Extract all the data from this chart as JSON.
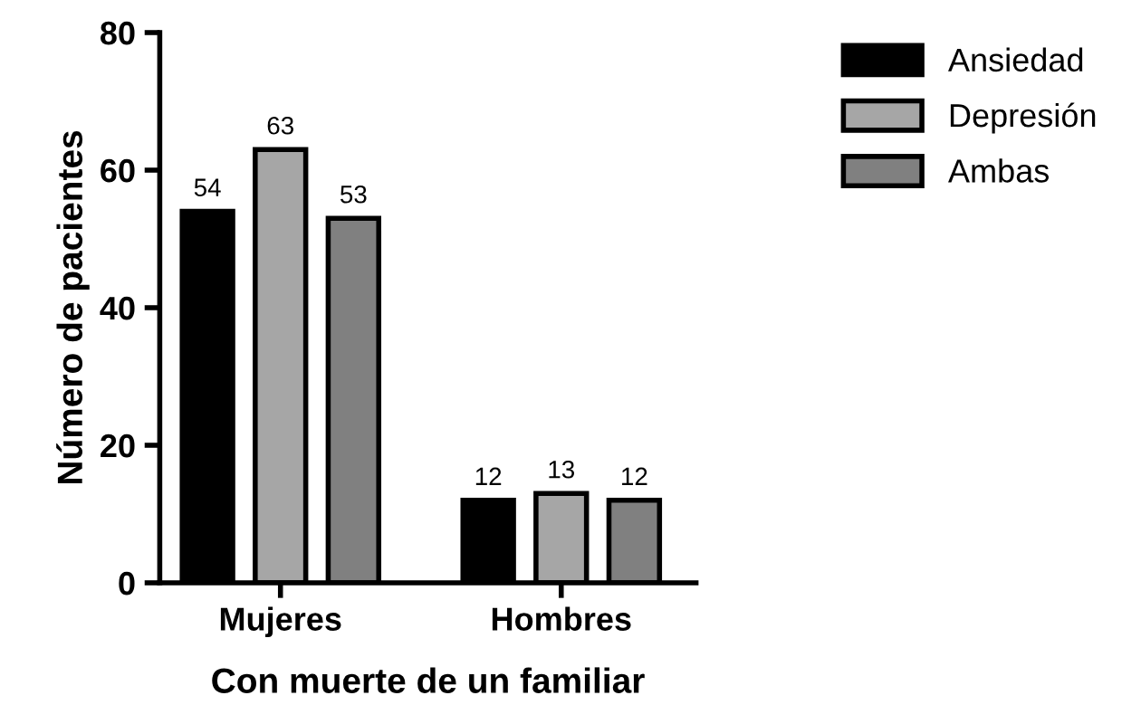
{
  "chart_data": {
    "type": "bar",
    "xlabel": "Con muerte de un familiar",
    "ylabel": "Número de pacientes",
    "categories": [
      "Mujeres",
      "Hombres"
    ],
    "series": [
      {
        "name": "Ansiedad",
        "color": "#000000",
        "values": [
          54,
          12
        ]
      },
      {
        "name": "Depresión",
        "color": "#a6a6a6",
        "values": [
          63,
          13
        ]
      },
      {
        "name": "Ambas",
        "color": "#808080",
        "values": [
          53,
          12
        ]
      }
    ],
    "ylim": [
      0,
      80
    ],
    "yticks": [
      0,
      20,
      40,
      60,
      80
    ],
    "data_labels": true,
    "grid": false,
    "legend": "top right"
  }
}
